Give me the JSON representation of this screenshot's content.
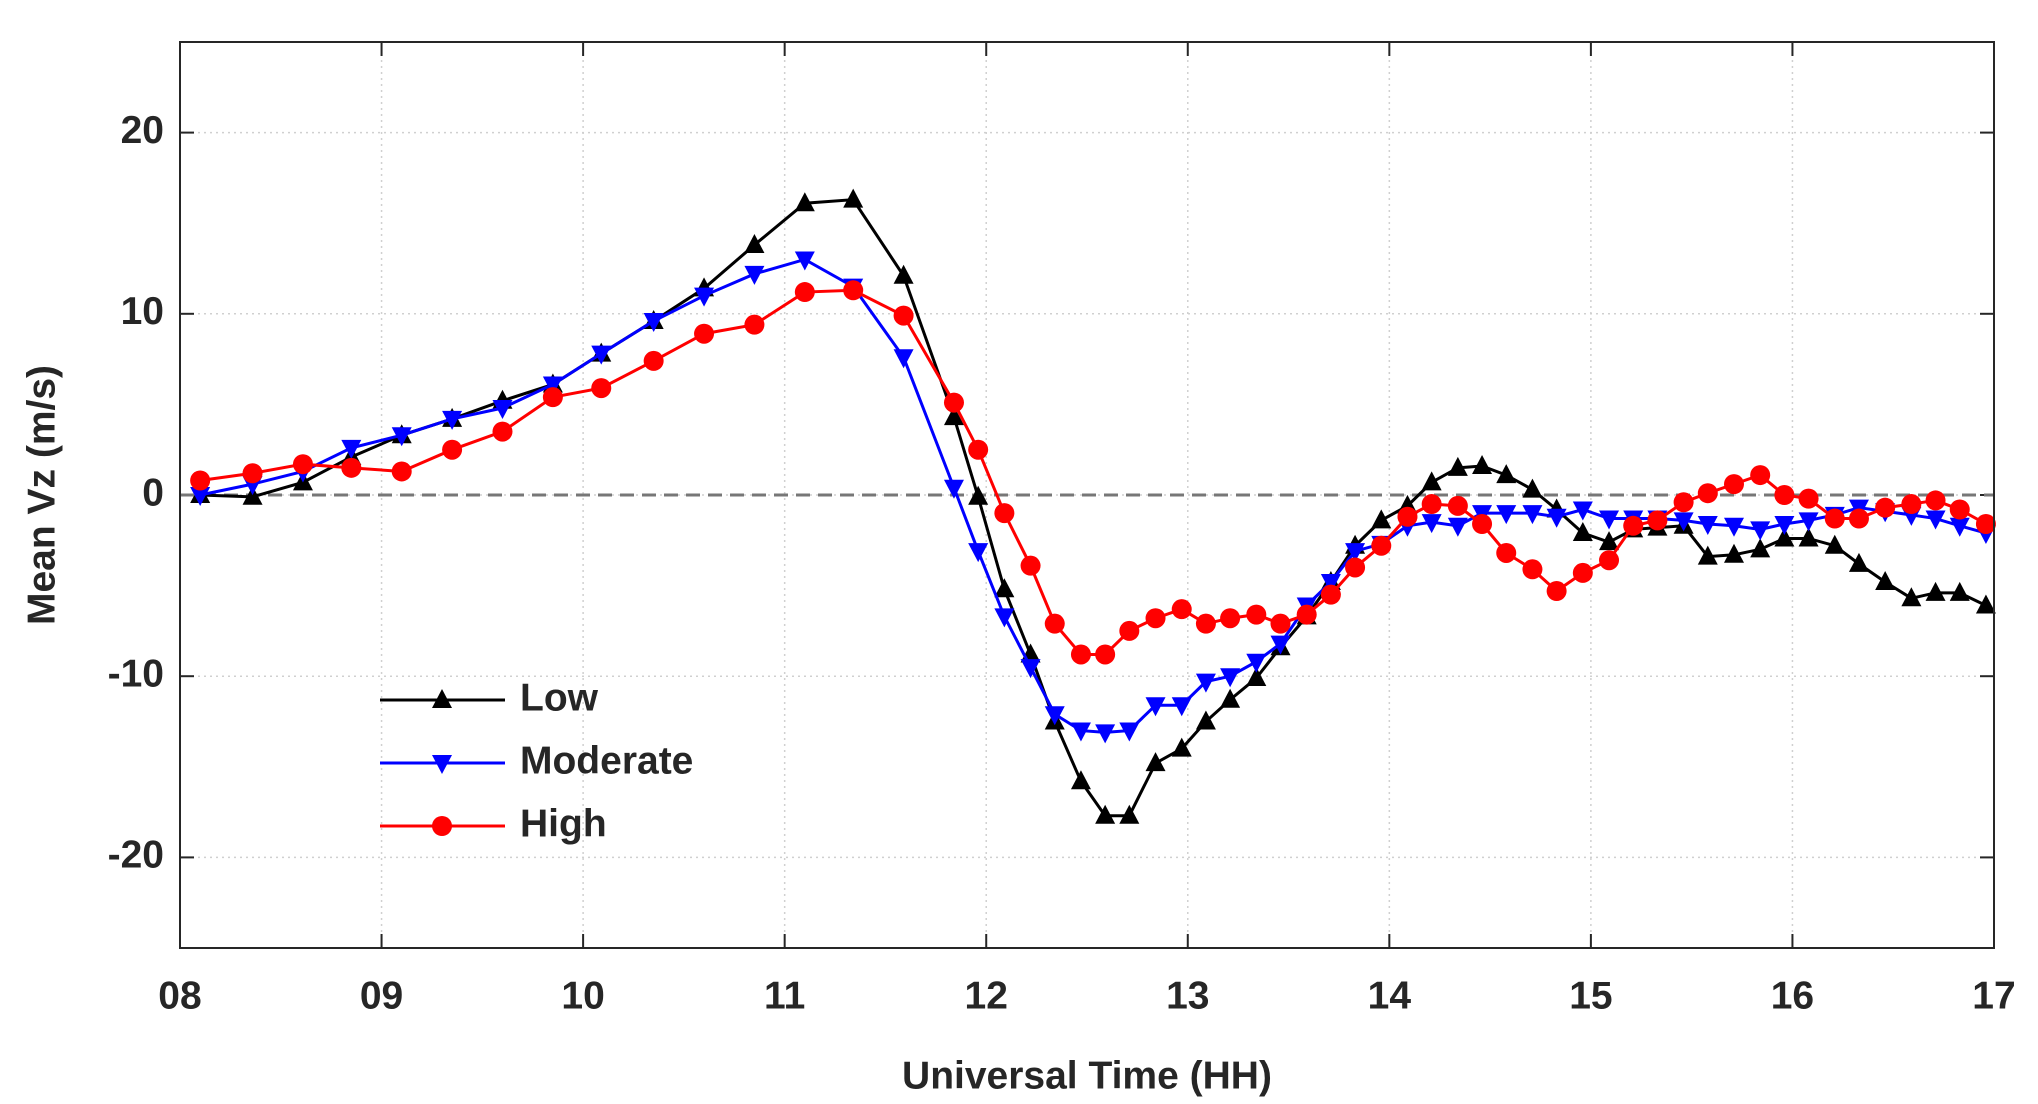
{
  "chart_data": {
    "type": "line",
    "xlabel": "Universal Time (HH)",
    "ylabel": "Mean Vz (m/s)",
    "x": [
      8.1,
      8.36,
      8.61,
      8.85,
      9.1,
      9.35,
      9.6,
      9.85,
      10.09,
      10.35,
      10.6,
      10.85,
      11.1,
      11.34,
      11.59,
      11.84,
      11.96,
      12.09,
      12.22,
      12.34,
      12.47,
      12.59,
      12.71,
      12.84,
      12.97,
      13.09,
      13.21,
      13.34,
      13.46,
      13.59,
      13.71,
      13.83,
      13.96,
      14.09,
      14.21,
      14.34,
      14.46,
      14.58,
      14.71,
      14.83,
      14.96,
      15.09,
      15.21,
      15.33,
      15.46,
      15.58,
      15.71,
      15.84,
      15.96,
      16.08,
      16.21,
      16.33,
      16.46,
      16.59,
      16.71,
      16.83,
      16.96
    ],
    "series": [
      {
        "name": "Low",
        "color": "#000000",
        "marker": "triangle-up",
        "values": [
          0,
          -0.1,
          0.7,
          2.1,
          3.3,
          4.2,
          5.2,
          6.1,
          7.8,
          9.6,
          11.4,
          13.8,
          16.1,
          16.3,
          12.1,
          4.3,
          -0.1,
          -5.2,
          -8.8,
          -12.5,
          -15.8,
          -17.7,
          -17.7,
          -14.8,
          -14,
          -12.5,
          -11.3,
          -10.1,
          -8.4,
          -6.7,
          -4.8,
          -2.8,
          -1.4,
          -0.6,
          0.7,
          1.5,
          1.6,
          1.1,
          0.3,
          -0.8,
          -2.1,
          -2.6,
          -1.9,
          -1.8,
          -1.7,
          -3.4,
          -3.3,
          -3,
          -2.4,
          -2.4,
          -2.8,
          -3.8,
          -4.8,
          -5.7,
          -5.4,
          -5.4,
          -6.1
        ]
      },
      {
        "name": "Moderate",
        "color": "#0000ff",
        "marker": "triangle-down",
        "values": [
          0,
          0.6,
          1.3,
          2.6,
          3.3,
          4.2,
          4.8,
          6.1,
          7.8,
          9.6,
          11,
          12.2,
          13,
          11.5,
          7.6,
          0.4,
          -3.1,
          -6.7,
          -9.5,
          -12.1,
          -13,
          -13.1,
          -13,
          -11.6,
          -11.6,
          -10.3,
          -10,
          -9.2,
          -8.2,
          -6.1,
          -4.8,
          -3.1,
          -2.7,
          -1.7,
          -1.5,
          -1.7,
          -1,
          -1,
          -1,
          -1.2,
          -0.8,
          -1.3,
          -1.3,
          -1.3,
          -1.4,
          -1.6,
          -1.7,
          -1.9,
          -1.6,
          -1.4,
          -1.1,
          -0.7,
          -0.9,
          -1.1,
          -1.3,
          -1.7,
          -2.1
        ]
      },
      {
        "name": "High",
        "color": "#ff0000",
        "marker": "circle",
        "values": [
          0.8,
          1.2,
          1.7,
          1.5,
          1.3,
          2.5,
          3.5,
          5.4,
          5.9,
          7.4,
          8.9,
          9.4,
          11.2,
          11.3,
          9.9,
          5.1,
          2.5,
          -1,
          -3.9,
          -7.1,
          -8.8,
          -8.8,
          -7.5,
          -6.8,
          -6.3,
          -7.1,
          -6.8,
          -6.6,
          -7.1,
          -6.6,
          -5.5,
          -4,
          -2.8,
          -1.2,
          -0.5,
          -0.6,
          -1.6,
          -3.2,
          -4.1,
          -5.3,
          -4.3,
          -3.6,
          -1.7,
          -1.4,
          -0.4,
          0.1,
          0.6,
          1.1,
          0,
          -0.2,
          -1.3,
          -1.3,
          -0.7,
          -0.5,
          -0.3,
          -0.8,
          -1.6
        ]
      }
    ],
    "xlim": [
      8,
      17
    ],
    "xticks": [
      {
        "value": 8,
        "label": "08"
      },
      {
        "value": 9,
        "label": "09"
      },
      10,
      11,
      12,
      13,
      14,
      15,
      16,
      17
    ],
    "ylim": [
      -25,
      25
    ],
    "yticks": [
      -20,
      -10,
      0,
      10,
      20
    ],
    "reference_line": 0,
    "grid": true,
    "legend": "lower left"
  }
}
